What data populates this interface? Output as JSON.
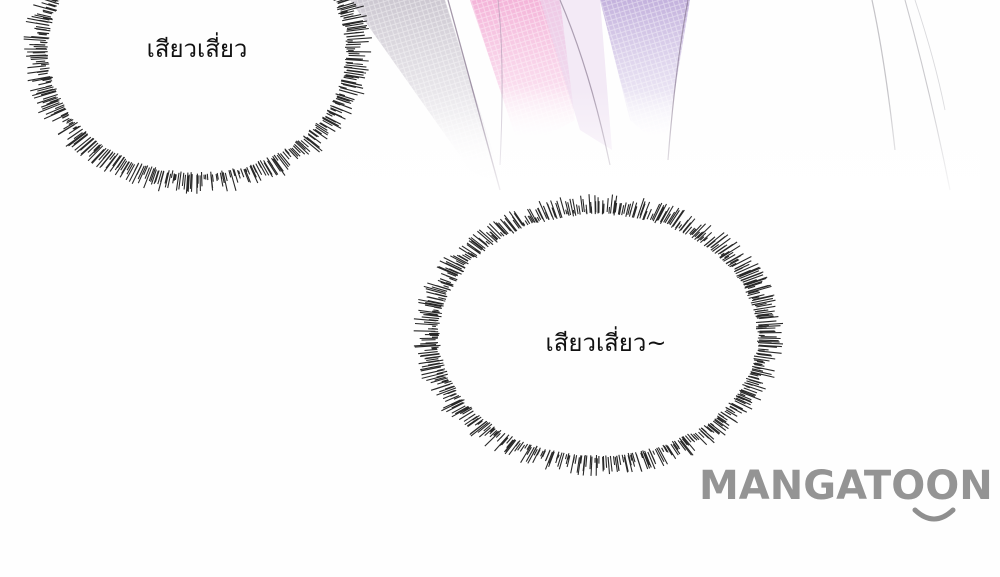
{
  "speech_bubbles": [
    {
      "text": "เสียวเสี่ยว"
    },
    {
      "text": "เสียวเสี่ยว~"
    }
  ],
  "watermark": {
    "text": "MANGATOON",
    "color": "#8f8f8f"
  },
  "colors": {
    "background": "#ffffff",
    "bubble_burst": "#111111",
    "ribbon_pink": "#f2a7d2",
    "ribbon_lilac": "#b9a4d7",
    "ribbon_gray": "#c7c2cc"
  }
}
